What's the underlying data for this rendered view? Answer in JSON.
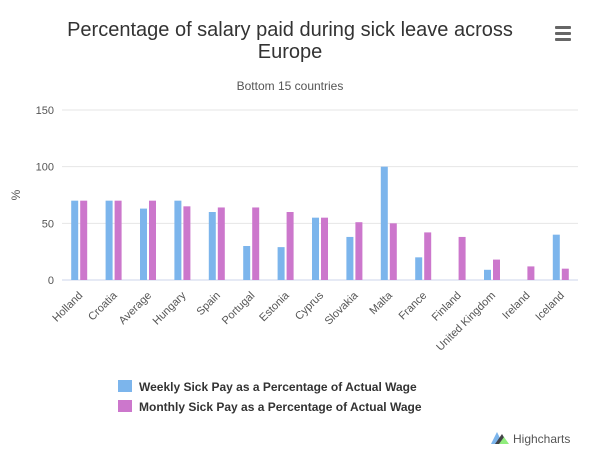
{
  "chart_data": {
    "type": "bar",
    "title": "Percentage of salary paid during sick leave across Europe",
    "title_lines": [
      "Percentage of salary paid during sick leave across",
      "Europe"
    ],
    "subtitle": "Bottom 15 countries",
    "ylabel": "%",
    "xlabel": "",
    "ylim": [
      0,
      150
    ],
    "yticks": [
      0,
      50,
      100,
      150
    ],
    "grid": true,
    "legend_position": "bottom-left",
    "categories": [
      "Holland",
      "Croatia",
      "Average",
      "Hungary",
      "Spain",
      "Portugal",
      "Estonia",
      "Cyprus",
      "Slovakia",
      "Malta",
      "France",
      "Finland",
      "United Kingdom",
      "Ireland",
      "Iceland"
    ],
    "series": [
      {
        "name": "Weekly Sick Pay as a Percentage of Actual Wage",
        "color": "#7cb5ec",
        "values": [
          70,
          70,
          63,
          70,
          60,
          30,
          29,
          55,
          38,
          100,
          20,
          0,
          9,
          0,
          40
        ]
      },
      {
        "name": "Monthly Sick Pay as a Percentage of Actual Wage",
        "color": "#cc77cc",
        "values": [
          70,
          70,
          70,
          65,
          64,
          64,
          60,
          55,
          51,
          50,
          42,
          38,
          18,
          12,
          10
        ]
      }
    ]
  },
  "ui": {
    "menu_icon": "hamburger-menu-icon",
    "credits_icon": "highcharts-logo-icon",
    "credits_text": "Highcharts"
  }
}
